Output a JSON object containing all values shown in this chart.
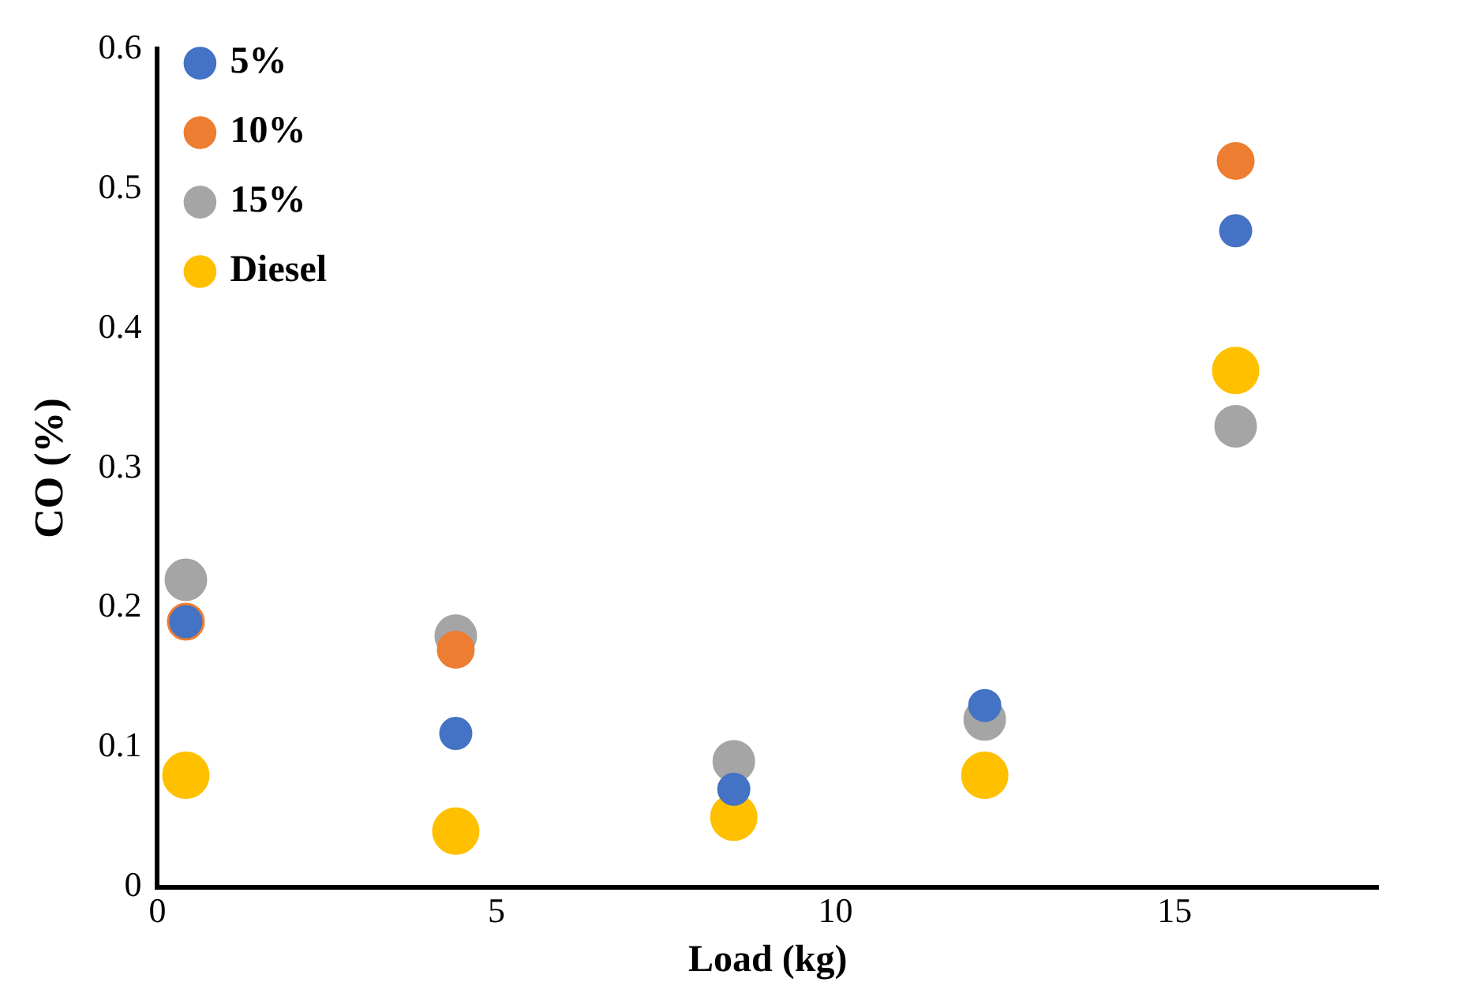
{
  "chart_data": {
    "type": "scatter",
    "xlabel": "Load (kg)",
    "ylabel": "CO (%)",
    "x": [
      0.42,
      4.4,
      8.5,
      12.2,
      15.9
    ],
    "series": [
      {
        "name": "5%",
        "color": "#4472c4",
        "values": [
          0.19,
          0.11,
          0.07,
          0.13,
          0.47
        ]
      },
      {
        "name": "10%",
        "color": "#ed7d31",
        "values": [
          0.19,
          0.17,
          null,
          null,
          0.52
        ]
      },
      {
        "name": "15%",
        "color": "#a5a5a5",
        "values": [
          0.22,
          0.18,
          0.09,
          0.12,
          0.33
        ]
      },
      {
        "name": "Diesel",
        "color": "#ffc000",
        "values": [
          0.08,
          0.04,
          0.05,
          0.08,
          0.37
        ]
      }
    ],
    "xlim": [
      0,
      18
    ],
    "xticks": [
      0,
      5,
      10,
      15
    ],
    "ylim": [
      0,
      0.6
    ],
    "yticks": [
      0,
      0.1,
      0.2,
      0.3,
      0.4,
      0.5,
      0.6
    ],
    "grid": false,
    "legend": "top left",
    "marker": "circle"
  }
}
